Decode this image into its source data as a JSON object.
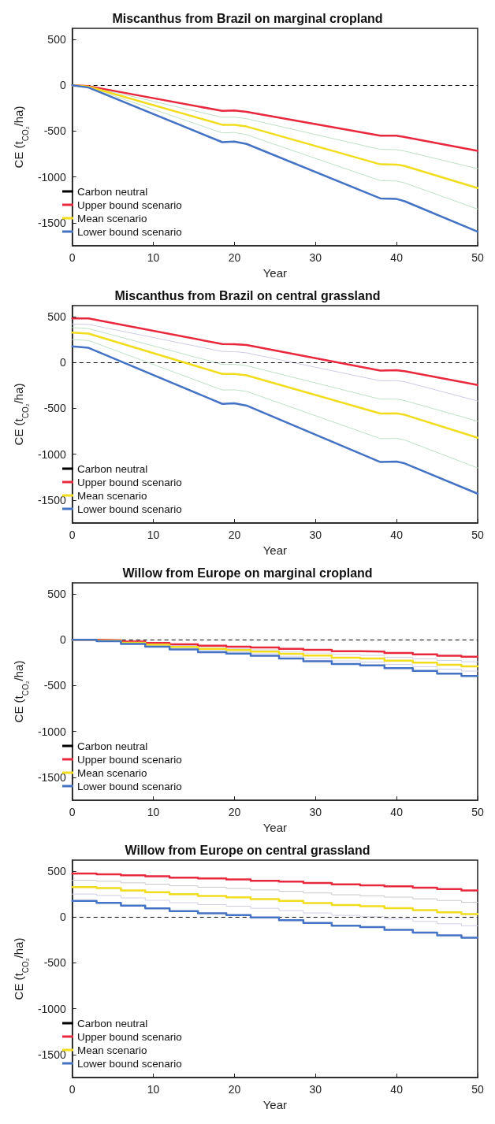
{
  "chart_data": [
    {
      "type": "line",
      "title": "Miscanthus from Brazil on marginal cropland",
      "xlabel": "Year",
      "ylabel": "CE (t$_{CO₂}$/ha)",
      "xlim": [
        0,
        50
      ],
      "xticks": [
        0,
        10,
        20,
        30,
        40,
        50
      ],
      "ylim": [
        -1750,
        620
      ],
      "yticks": [
        -1500,
        -1000,
        -500,
        0,
        500
      ],
      "grid": false,
      "legend": "bottom left",
      "line_style": "solid",
      "marker": "none",
      "ref_lines": [
        {
          "axis": "y",
          "value": 0,
          "label": "Carbon neutral",
          "color": "#000000",
          "line_style": "dashed"
        }
      ],
      "series": [
        {
          "color": "#bfe0c6",
          "x": [
            0,
            2,
            18.5,
            20,
            21.5,
            38,
            40,
            41,
            50
          ],
          "values": [
            0,
            -12,
            -350,
            -348,
            -365,
            -700,
            -702,
            -718,
            -910
          ]
        },
        {
          "color": "#bfe0c6",
          "x": [
            0,
            2,
            18.5,
            20,
            21.5,
            38,
            40,
            41,
            50
          ],
          "values": [
            0,
            -20,
            -520,
            -515,
            -540,
            -1040,
            -1045,
            -1065,
            -1350
          ]
        },
        {
          "name": "Upper bound scenario",
          "color": "#e8283c",
          "x": [
            0,
            2,
            18.5,
            20,
            21.5,
            38,
            40,
            41,
            50
          ],
          "values": [
            0,
            -10,
            -280,
            -275,
            -290,
            -550,
            -550,
            -565,
            -715
          ]
        },
        {
          "name": "Mean scenario",
          "color": "#f2dc1e",
          "x": [
            0,
            2,
            18.5,
            20,
            21.5,
            38,
            40,
            41,
            50
          ],
          "values": [
            0,
            -15,
            -431,
            -431,
            -450,
            -862,
            -865,
            -880,
            -1121
          ]
        },
        {
          "name": "Lower bound scenario",
          "color": "#4472c4",
          "x": [
            0,
            2,
            18.5,
            20,
            21.5,
            38,
            40,
            41,
            50
          ],
          "values": [
            0,
            -25,
            -621,
            -615,
            -640,
            -1234,
            -1240,
            -1265,
            -1597
          ]
        }
      ]
    },
    {
      "type": "line",
      "title": "Miscanthus from Brazil on central grassland",
      "xlabel": "Year",
      "ylabel": "CE (t$_{CO₂}$/ha)",
      "xlim": [
        0,
        50
      ],
      "xticks": [
        0,
        10,
        20,
        30,
        40,
        50
      ],
      "ylim": [
        -1750,
        620
      ],
      "yticks": [
        -1500,
        -1000,
        -500,
        0,
        500
      ],
      "grid": false,
      "legend": "bottom left",
      "line_style": "solid",
      "marker": "none",
      "ref_lines": [
        {
          "axis": "y",
          "value": 0,
          "label": "Carbon neutral",
          "color": "#000000",
          "line_style": "dashed"
        }
      ],
      "series": [
        {
          "color": "#cfcbe6",
          "x": [
            0,
            2,
            18.5,
            20,
            21.5,
            38,
            40,
            41,
            50
          ],
          "values": [
            420,
            415,
            120,
            118,
            105,
            -200,
            -198,
            -210,
            -420
          ]
        },
        {
          "color": "#bfe0c6",
          "x": [
            0,
            2,
            18.5,
            20,
            21.5,
            38,
            40,
            41,
            50
          ],
          "values": [
            380,
            370,
            -20,
            -20,
            -35,
            -400,
            -400,
            -415,
            -640
          ]
        },
        {
          "color": "#bfe0c6",
          "x": [
            0,
            2,
            18.5,
            20,
            21.5,
            38,
            40,
            41,
            50
          ],
          "values": [
            250,
            240,
            -300,
            -298,
            -315,
            -830,
            -828,
            -845,
            -1150
          ]
        },
        {
          "name": "Upper bound scenario",
          "color": "#e8283c",
          "x": [
            0,
            2,
            18.5,
            20,
            21.5,
            38,
            40,
            41,
            50
          ],
          "values": [
            480,
            480,
            201,
            200,
            190,
            -88,
            -85,
            -95,
            -246
          ]
        },
        {
          "name": "Mean scenario",
          "color": "#f2dc1e",
          "x": [
            0,
            2,
            18.5,
            20,
            21.5,
            38,
            40,
            41,
            50
          ],
          "values": [
            325,
            315,
            -125,
            -125,
            -140,
            -556,
            -555,
            -570,
            -820
          ]
        },
        {
          "name": "Lower bound scenario",
          "color": "#4472c4",
          "x": [
            0,
            2,
            18.5,
            20,
            21.5,
            38,
            40,
            41,
            50
          ],
          "values": [
            175,
            160,
            -451,
            -445,
            -470,
            -1085,
            -1080,
            -1100,
            -1430
          ]
        }
      ]
    },
    {
      "type": "step",
      "title": "Willow from Europe on marginal cropland",
      "xlabel": "Year",
      "ylabel": "CE (t$_{CO₂}$/ha)",
      "xlim": [
        0,
        50
      ],
      "xticks": [
        0,
        10,
        20,
        30,
        40,
        50
      ],
      "ylim": [
        -1750,
        620
      ],
      "yticks": [
        -1500,
        -1000,
        -500,
        0,
        500
      ],
      "grid": false,
      "legend": "bottom left",
      "line_style": "solid",
      "marker": "none",
      "ref_lines": [
        {
          "axis": "y",
          "value": 0,
          "label": "Carbon neutral",
          "color": "#000000",
          "line_style": "dashed"
        }
      ],
      "series": [
        {
          "color": "#cdd0e8",
          "x": [
            0,
            3,
            6,
            9,
            12,
            15.5,
            19,
            22,
            25.5,
            28.5,
            32,
            35.5,
            38.5,
            42,
            45,
            48,
            50
          ],
          "values": [
            0,
            -8,
            -25,
            -50,
            -65,
            -85,
            -95,
            -110,
            -128,
            -145,
            -160,
            -170,
            -190,
            -208,
            -225,
            -240,
            -240
          ]
        },
        {
          "color": "#cdd0e8",
          "x": [
            0,
            3,
            6,
            9,
            12,
            15.5,
            19,
            22,
            25.5,
            28.5,
            32,
            35.5,
            38.5,
            42,
            45,
            48,
            50
          ],
          "values": [
            0,
            -12,
            -40,
            -66,
            -92,
            -118,
            -130,
            -152,
            -180,
            -205,
            -230,
            -243,
            -270,
            -295,
            -320,
            -342,
            -342
          ]
        },
        {
          "name": "Upper bound scenario",
          "color": "#e8283c",
          "x": [
            0,
            3,
            6,
            9,
            12,
            15.5,
            19,
            22,
            25.5,
            28.5,
            32,
            35.5,
            38.5,
            42,
            45,
            48,
            50
          ],
          "values": [
            0,
            -5,
            -20,
            -35,
            -50,
            -65,
            -75,
            -85,
            -100,
            -110,
            -125,
            -130,
            -145,
            -160,
            -175,
            -185,
            -185
          ]
        },
        {
          "name": "Mean scenario",
          "color": "#f2dc1e",
          "x": [
            0,
            3,
            6,
            9,
            12,
            15.5,
            19,
            22,
            25.5,
            28.5,
            32,
            35.5,
            38.5,
            42,
            45,
            48,
            50
          ],
          "values": [
            0,
            -10,
            -32,
            -55,
            -78,
            -100,
            -112,
            -130,
            -152,
            -172,
            -195,
            -205,
            -228,
            -250,
            -272,
            -290,
            -290
          ]
        },
        {
          "name": "Lower bound scenario",
          "color": "#4472c4",
          "x": [
            0,
            3,
            6,
            9,
            12,
            15.5,
            19,
            22,
            25.5,
            28.5,
            32,
            35.5,
            38.5,
            42,
            45,
            48,
            50
          ],
          "values": [
            0,
            -15,
            -45,
            -75,
            -105,
            -135,
            -150,
            -175,
            -205,
            -235,
            -265,
            -280,
            -310,
            -340,
            -370,
            -395,
            -395
          ]
        }
      ]
    },
    {
      "type": "step",
      "title": "Willow from Europe on central grassland",
      "xlabel": "Year",
      "ylabel": "CE (t$_{CO₂}$/ha)",
      "xlim": [
        0,
        50
      ],
      "xticks": [
        0,
        10,
        20,
        30,
        40,
        50
      ],
      "ylim": [
        -1750,
        620
      ],
      "yticks": [
        -1500,
        -1000,
        -500,
        0,
        500
      ],
      "grid": false,
      "legend": "bottom left",
      "line_style": "solid",
      "marker": "none",
      "ref_lines": [
        {
          "axis": "y",
          "value": 0,
          "label": "Carbon neutral",
          "color": "#000000",
          "line_style": "dashed"
        }
      ],
      "series": [
        {
          "color": "#c8c8c8",
          "x": [
            0,
            3,
            6,
            9,
            12,
            15.5,
            19,
            22,
            25.5,
            28.5,
            32,
            35.5,
            38.5,
            42,
            45,
            48,
            50
          ],
          "values": [
            400,
            390,
            372,
            358,
            340,
            325,
            312,
            295,
            280,
            262,
            242,
            232,
            216,
            198,
            180,
            160,
            160
          ]
        },
        {
          "color": "#d0cfe8",
          "x": [
            0,
            3,
            6,
            9,
            12,
            15.5,
            19,
            22,
            25.5,
            28.5,
            32,
            35.5,
            38.5,
            42,
            45,
            48,
            50
          ],
          "values": [
            250,
            235,
            208,
            182,
            156,
            135,
            118,
            95,
            70,
            44,
            18,
            4,
            -22,
            -48,
            -74,
            -96,
            -96
          ]
        },
        {
          "name": "Upper bound scenario",
          "color": "#e8283c",
          "x": [
            0,
            3,
            6,
            9,
            12,
            15.5,
            19,
            22,
            25.5,
            28.5,
            32,
            35.5,
            38.5,
            42,
            45,
            48,
            50
          ],
          "values": [
            475,
            465,
            455,
            445,
            430,
            420,
            410,
            395,
            385,
            370,
            355,
            345,
            335,
            320,
            305,
            290,
            290
          ]
        },
        {
          "name": "Mean scenario",
          "color": "#f2dc1e",
          "x": [
            0,
            3,
            6,
            9,
            12,
            15.5,
            19,
            22,
            25.5,
            28.5,
            32,
            35.5,
            38.5,
            42,
            45,
            48,
            50
          ],
          "values": [
            325,
            315,
            290,
            270,
            248,
            230,
            215,
            195,
            175,
            152,
            130,
            118,
            97,
            75,
            52,
            32,
            32
          ]
        },
        {
          "name": "Lower bound scenario",
          "color": "#4472c4",
          "x": [
            0,
            3,
            6,
            9,
            12,
            15.5,
            19,
            22,
            25.5,
            28.5,
            32,
            35.5,
            38.5,
            42,
            45,
            48,
            50
          ],
          "values": [
            175,
            155,
            125,
            95,
            65,
            40,
            20,
            -5,
            -35,
            -65,
            -95,
            -110,
            -140,
            -170,
            -200,
            -225,
            -225
          ]
        }
      ]
    }
  ]
}
